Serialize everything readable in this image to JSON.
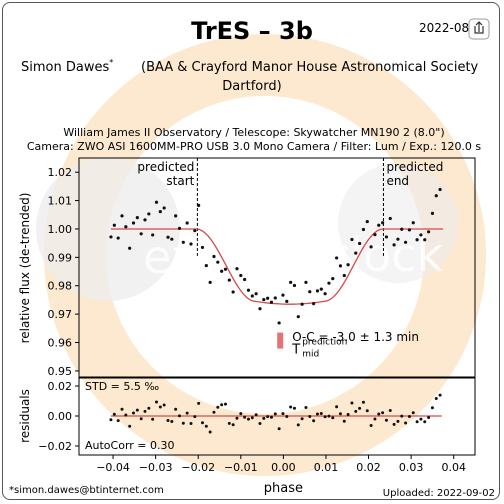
{
  "header": {
    "title": "TrES – 3b",
    "date": "2022-08-",
    "observer": "Simon Dawes",
    "observer_mark": "*",
    "affiliation_line1": "(BAA & Crayford Manor House Astronomical Society",
    "affiliation_line2": "Dartford)",
    "observatory": "William James II Observatory / Telescope: Skywatcher MN190 2 (8.0\")",
    "camera": "Camera: ZWO ASI 1600MM-PRO USB 3.0 Mono Camera / Filter: Lum / Exp.: 120.0 s"
  },
  "footer": {
    "email": "*simon.dawes@btinternet.com",
    "uploaded": "Uploaded: 2022-09-02"
  },
  "watermark": {
    "left": "exo",
    "right": "clock"
  },
  "colors": {
    "model": "#d94848",
    "residual_line": "#d94848",
    "marker": "#e57373",
    "watermark_ring": "#fde9cf",
    "points": "#111111"
  },
  "chart_data": [
    {
      "type": "scatter",
      "panel": "light-curve",
      "ylabel": "relative flux (de-trended)",
      "xlim": [
        -0.048,
        0.045
      ],
      "ylim": [
        0.9475,
        1.025
      ],
      "yticks": [
        0.95,
        0.96,
        0.97,
        0.98,
        0.99,
        1.0,
        1.01,
        1.02
      ],
      "ytick_labels": [
        "0.95",
        "0.96",
        "0.97",
        "0.98",
        "0.99",
        "1.00",
        "1.01",
        "1.02"
      ],
      "grid": false,
      "annotations": {
        "predicted_start_label": [
          "predicted",
          "start"
        ],
        "predicted_end_label": [
          "predicted",
          "end"
        ],
        "predicted_start_phase": -0.0202,
        "predicted_end_phase": 0.0235,
        "oc_label": "O-C = -3.0 ± 1.3 min",
        "tmid_label": "T",
        "tmid_sup": "prediction",
        "tmid_sub": "mid",
        "oc_marker_phase": -0.00075
      },
      "model": {
        "baseline": 1.0,
        "depth": 0.0255,
        "ingress_start": -0.0205,
        "ingress_end": -0.0065,
        "egress_start": 0.0095,
        "egress_end": 0.0235
      },
      "points": [
        [
          -0.0405,
          0.9972
        ],
        [
          -0.0397,
          1.0013
        ],
        [
          -0.0388,
          0.9968
        ],
        [
          -0.0379,
          1.0046
        ],
        [
          -0.037,
          1.0008
        ],
        [
          -0.0361,
          0.9932
        ],
        [
          -0.0352,
          1.0021
        ],
        [
          -0.0343,
          1.004
        ],
        [
          -0.0334,
          0.9983
        ],
        [
          -0.0325,
          1.0032
        ],
        [
          -0.0316,
          1.0053
        ],
        [
          -0.0307,
          0.9979
        ],
        [
          -0.0298,
          1.0094
        ],
        [
          -0.0289,
          1.0061
        ],
        [
          -0.028,
          1.0074
        ],
        [
          -0.0271,
          0.9971
        ],
        [
          -0.0262,
          0.9964
        ],
        [
          -0.0253,
          1.0046
        ],
        [
          -0.0244,
          1.0002
        ],
        [
          -0.0235,
          0.9953
        ],
        [
          -0.0226,
          1.0021
        ],
        [
          -0.0217,
          0.9947
        ],
        [
          -0.0208,
          0.9994
        ],
        [
          -0.0199,
          1.0083
        ],
        [
          -0.019,
          0.9935
        ],
        [
          -0.0181,
          0.9871
        ],
        [
          -0.0172,
          0.9812
        ],
        [
          -0.0163,
          0.9903
        ],
        [
          -0.0154,
          0.9883
        ],
        [
          -0.0145,
          0.9851
        ],
        [
          -0.0136,
          0.9858
        ],
        [
          -0.0127,
          0.982
        ],
        [
          -0.0118,
          0.9778
        ],
        [
          -0.0109,
          0.986
        ],
        [
          -0.01,
          0.9836
        ],
        [
          -0.0091,
          0.9822
        ],
        [
          -0.0082,
          0.9784
        ],
        [
          -0.0073,
          0.9764
        ],
        [
          -0.0064,
          0.9772
        ],
        [
          -0.0055,
          0.9719
        ],
        [
          -0.0046,
          0.9751
        ],
        [
          -0.0037,
          0.9756
        ],
        [
          -0.0028,
          0.9742
        ],
        [
          -0.0019,
          0.9757
        ],
        [
          -0.001,
          0.9669
        ],
        [
          -0.0001,
          0.9767
        ],
        [
          0.0008,
          0.9745
        ],
        [
          0.0017,
          0.9812
        ],
        [
          0.0026,
          0.9801
        ],
        [
          0.0035,
          0.9691
        ],
        [
          0.0044,
          0.9735
        ],
        [
          0.0053,
          0.9812
        ],
        [
          0.0062,
          0.9779
        ],
        [
          0.0071,
          0.9737
        ],
        [
          0.008,
          0.9782
        ],
        [
          0.0089,
          0.9788
        ],
        [
          0.0098,
          0.9772
        ],
        [
          0.0107,
          0.9809
        ],
        [
          0.0116,
          0.9825
        ],
        [
          0.0125,
          0.9898
        ],
        [
          0.0134,
          0.987
        ],
        [
          0.0143,
          0.9836
        ],
        [
          0.0152,
          0.9874
        ],
        [
          0.0161,
          0.9963
        ],
        [
          0.017,
          0.9915
        ],
        [
          0.0179,
          0.9949
        ],
        [
          0.0188,
          0.9998
        ],
        [
          0.0197,
          1.0026
        ],
        [
          0.0206,
          0.9937
        ],
        [
          0.0215,
          0.998
        ],
        [
          0.0224,
          1.0013
        ],
        [
          0.0233,
          1.0022
        ],
        [
          0.0242,
          0.9972
        ],
        [
          0.0251,
          1.0037
        ],
        [
          0.026,
          0.9944
        ],
        [
          0.0269,
          0.9964
        ],
        [
          0.0278,
          0.9999
        ],
        [
          0.0287,
          0.9953
        ],
        [
          0.0296,
          0.9997
        ],
        [
          0.0305,
          1.0022
        ],
        [
          0.0314,
          0.9962
        ],
        [
          0.0323,
          0.9979
        ],
        [
          0.0332,
          0.9962
        ],
        [
          0.0341,
          0.999
        ],
        [
          0.035,
          1.0055
        ],
        [
          0.0359,
          1.0117
        ],
        [
          0.0368,
          1.0139
        ]
      ]
    },
    {
      "type": "scatter",
      "panel": "residuals",
      "xlabel": "phase",
      "ylabel": "residuals",
      "xlim": [
        -0.048,
        0.045
      ],
      "ylim": [
        -0.026,
        0.026
      ],
      "xticks": [
        -0.04,
        -0.03,
        -0.02,
        -0.01,
        0.0,
        0.01,
        0.02,
        0.03,
        0.04
      ],
      "xtick_labels": [
        "−0.04",
        "−0.03",
        "−0.02",
        "−0.01",
        "0.00",
        "0.01",
        "0.02",
        "0.03",
        "0.04"
      ],
      "yticks": [
        -0.02,
        0.0,
        0.02
      ],
      "ytick_labels": [
        "−0.02",
        "0.00",
        "0.02"
      ],
      "std_label": "STD = 5.5 ‰",
      "autocorr_label": "AutoCorr = 0.30",
      "grid": false,
      "residuals": [
        -0.0025,
        0.0012,
        -0.0031,
        0.0045,
        0.0007,
        -0.0068,
        0.002,
        0.0039,
        -0.0018,
        0.0031,
        0.0052,
        -0.0022,
        0.0093,
        0.006,
        0.0073,
        -0.003,
        -0.0037,
        0.0045,
        0.0001,
        -0.0048,
        0.0019,
        -0.005,
        -0.0004,
        0.0084,
        -0.0045,
        -0.0068,
        -0.0107,
        0.0025,
        0.0058,
        0.0075,
        0.0079,
        -0.0049,
        -0.0058,
        -0.0015,
        0.0016,
        -0.0008,
        -0.0021,
        -0.0012,
        0.0008,
        -0.005,
        -0.0016,
        -0.0004,
        -0.0008,
        0.0014,
        -0.0085,
        0.0016,
        -0.0003,
        0.006,
        0.0052,
        -0.0059,
        -0.0018,
        0.0057,
        -0.0003,
        -0.0032,
        0.0013,
        0.0017,
        -0.0005,
        -0.0001,
        -0.0012,
        0.0062,
        0.0015,
        -0.0035,
        0.001,
        0.0087,
        0.0031,
        0.0051,
        0.0092,
        0.0035,
        -0.0063,
        -0.002,
        0.0013,
        0.0022,
        -0.0028,
        0.0037,
        -0.0056,
        -0.0036,
        -0.0001,
        -0.0047,
        -0.0003,
        0.0022,
        -0.0038,
        -0.0021,
        -0.0038,
        -0.001,
        0.0055,
        0.0117,
        0.0139
      ]
    }
  ]
}
